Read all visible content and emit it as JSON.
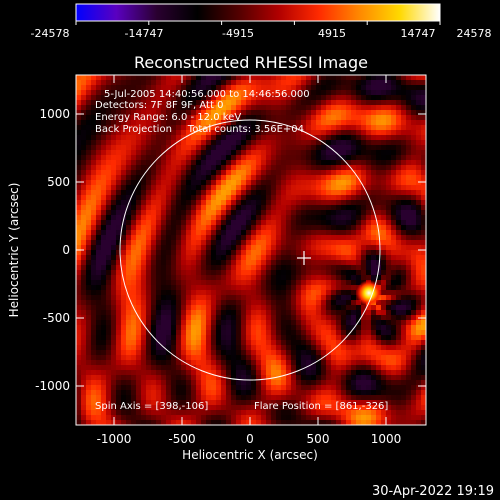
{
  "colorbar": {
    "tick_labels": [
      "-24578",
      "-14747",
      "-4915",
      "4915",
      "14747",
      "24578"
    ],
    "colors": [
      "#0000ff",
      "#5a00c0",
      "#2a0030",
      "#000000",
      "#500000",
      "#b00000",
      "#ff2a00",
      "#ff8800",
      "#ffd800",
      "#ffffff"
    ]
  },
  "plot": {
    "title": "Reconstructed RHESSI Image",
    "xlabel": "Heliocentric X (arcsec)",
    "ylabel": "Heliocentric Y (arcsec)",
    "x_ticks": [
      "-1000",
      "-500",
      "0",
      "500",
      "1000"
    ],
    "y_ticks": [
      "1000",
      "500",
      "0",
      "-500",
      "-1000"
    ],
    "info": [
      "5-Jul-2005 14:40:56.000 to 14:46:56.000",
      "Detectors: 7F 8F 9F, Att 0",
      "Energy Range: 6.0 - 12.0 keV",
      "Back Projection     Total counts: 3.56E+04"
    ],
    "spin_axis": "Spin Axis = [398,-106]",
    "flare_position": "Flare Position = [861,-326]"
  },
  "chart_data": {
    "type": "heatmap",
    "title": "Reconstructed RHESSI Image",
    "xlabel": "Heliocentric X (arcsec)",
    "ylabel": "Heliocentric Y (arcsec)",
    "xlim": [
      -1290,
      1290
    ],
    "ylim": [
      -1290,
      1290
    ],
    "zlim": [
      -24578,
      24578
    ],
    "solar_limb_radius": 960,
    "spin_axis": [
      398,
      -106
    ],
    "flare_position": [
      861,
      -326
    ]
  },
  "footer": {
    "timestamp": "30-Apr-2022 19:19"
  }
}
